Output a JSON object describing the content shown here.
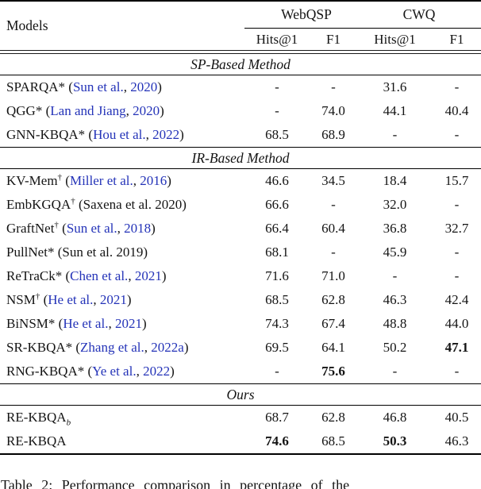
{
  "table": {
    "models_header": "Models",
    "groups": [
      "WebQSP",
      "CWQ"
    ],
    "sub_headers": [
      "Hits@1",
      "F1",
      "Hits@1",
      "F1"
    ],
    "sections": [
      {
        "title": "SP-Based Method",
        "rows": [
          {
            "name": "SPARQA",
            "marker": "*",
            "cite": {
              "author": "Sun et al.",
              "sep": ", ",
              "year": "2020",
              "linked": true
            },
            "vals": [
              "-",
              "-",
              "31.6",
              "-"
            ],
            "bold": [
              0,
              0,
              0,
              0
            ]
          },
          {
            "name": "QGG",
            "marker": "*",
            "cite": {
              "author": "Lan and Jiang",
              "sep": ", ",
              "year": "2020",
              "linked": true
            },
            "vals": [
              "-",
              "74.0",
              "44.1",
              "40.4"
            ],
            "bold": [
              0,
              0,
              0,
              0
            ]
          },
          {
            "name": "GNN-KBQA",
            "marker": "*",
            "cite": {
              "author": "Hou et al.",
              "sep": ", ",
              "year": "2022",
              "linked": true
            },
            "vals": [
              "68.5",
              "68.9",
              "-",
              "-"
            ],
            "bold": [
              0,
              0,
              0,
              0
            ]
          }
        ]
      },
      {
        "title": "IR-Based Method",
        "rows": [
          {
            "name": "KV-Mem",
            "marker": "†",
            "cite": {
              "author": "Miller et al.",
              "sep": ", ",
              "year": "2016",
              "linked": true
            },
            "vals": [
              "46.6",
              "34.5",
              "18.4",
              "15.7"
            ],
            "bold": [
              0,
              0,
              0,
              0
            ]
          },
          {
            "name": "EmbKGQA",
            "marker": "†",
            "cite": {
              "author": "Saxena et al.",
              "sep": " ",
              "year": "2020",
              "linked": false
            },
            "vals": [
              "66.6",
              "-",
              "32.0",
              "-"
            ],
            "bold": [
              0,
              0,
              0,
              0
            ]
          },
          {
            "name": "GraftNet",
            "marker": "†",
            "cite": {
              "author": "Sun et al.",
              "sep": ", ",
              "year": "2018",
              "linked": true
            },
            "vals": [
              "66.4",
              "60.4",
              "36.8",
              "32.7"
            ],
            "bold": [
              0,
              0,
              0,
              0
            ]
          },
          {
            "name": "PullNet",
            "marker": "*",
            "cite": {
              "author": "Sun et al.",
              "sep": " ",
              "year": "2019",
              "linked": false
            },
            "vals": [
              "68.1",
              "-",
              "45.9",
              "-"
            ],
            "bold": [
              0,
              0,
              0,
              0
            ]
          },
          {
            "name": "ReTraCk",
            "marker": "*",
            "cite": {
              "author": "Chen et al.",
              "sep": ", ",
              "year": "2021",
              "linked": true
            },
            "vals": [
              "71.6",
              "71.0",
              "-",
              "-"
            ],
            "bold": [
              0,
              0,
              0,
              0
            ]
          },
          {
            "name": "NSM",
            "marker": "†",
            "cite": {
              "author": "He et al.",
              "sep": ", ",
              "year": "2021",
              "linked": true
            },
            "vals": [
              "68.5",
              "62.8",
              "46.3",
              "42.4"
            ],
            "bold": [
              0,
              0,
              0,
              0
            ]
          },
          {
            "name": "BiNSM",
            "marker": "*",
            "cite": {
              "author": "He et al.",
              "sep": ", ",
              "year": "2021",
              "linked": true
            },
            "vals": [
              "74.3",
              "67.4",
              "48.8",
              "44.0"
            ],
            "bold": [
              0,
              0,
              0,
              0
            ]
          },
          {
            "name": "SR-KBQA",
            "marker": "*",
            "cite": {
              "author": "Zhang et al.",
              "sep": ", ",
              "year": "2022a",
              "linked": true
            },
            "vals": [
              "69.5",
              "64.1",
              "50.2",
              "47.1"
            ],
            "bold": [
              0,
              0,
              0,
              1
            ]
          },
          {
            "name": "RNG-KBQA",
            "marker": "*",
            "cite": {
              "author": "Ye et al.",
              "sep": ", ",
              "year": "2022",
              "linked": true
            },
            "vals": [
              "-",
              "75.6",
              "-",
              "-"
            ],
            "bold": [
              0,
              1,
              0,
              0
            ]
          }
        ]
      },
      {
        "title": "Ours",
        "rows": [
          {
            "name": "RE-KBQA",
            "sub": "b",
            "vals": [
              "68.7",
              "62.8",
              "46.8",
              "40.5"
            ],
            "bold": [
              0,
              0,
              0,
              0
            ]
          },
          {
            "name": "RE-KBQA",
            "vals": [
              "74.6",
              "68.5",
              "50.3",
              "46.3"
            ],
            "bold": [
              1,
              0,
              1,
              0
            ]
          }
        ]
      }
    ]
  },
  "caption": "Table 2: Performance comparison in percentage of the",
  "colors": {
    "citation_link": "#2433b8",
    "text": "#141414",
    "rule": "#000000"
  }
}
